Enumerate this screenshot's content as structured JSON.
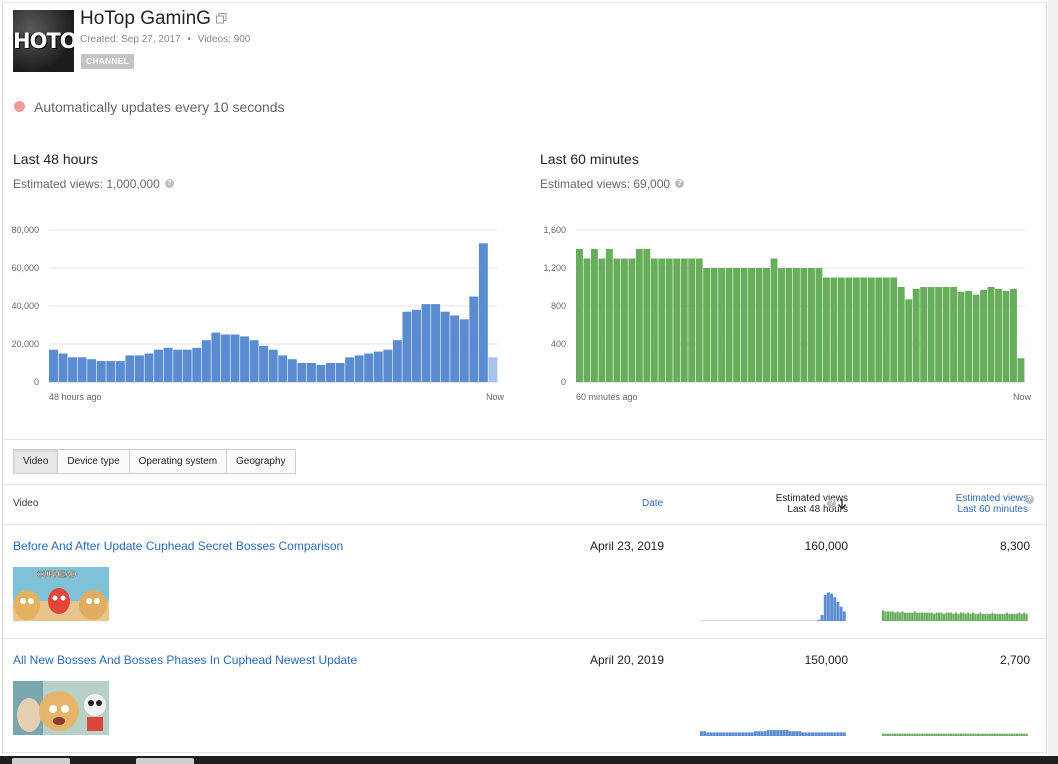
{
  "channel": {
    "name": "HoTop GaminG",
    "avatar_text": "HOTOP",
    "created": "Created: Sep 27, 2017",
    "separator": "•",
    "videos": "Videos: 900",
    "badge": "CHANNEL"
  },
  "auto_update": "Automatically updates every 10 seconds",
  "chart_data": [
    {
      "type": "bar",
      "title": "Last 48 hours",
      "subtitle": "Estimated views: 1,000,000",
      "x_start_label": "48 hours ago",
      "x_end_label": "Now",
      "ylim": [
        0,
        80000
      ],
      "yticks": [
        "0",
        "20,000",
        "40,000",
        "60,000",
        "80,000"
      ],
      "ytick_values": [
        0,
        20000,
        40000,
        60000,
        80000
      ],
      "grid": true,
      "color": "#5b8cd1",
      "partial_color": "#a9c3ea",
      "values": [
        17000,
        15000,
        13000,
        13000,
        12000,
        11000,
        11000,
        11000,
        14000,
        14000,
        15000,
        17000,
        18000,
        17000,
        17000,
        18000,
        22000,
        26000,
        25000,
        25000,
        24000,
        22000,
        19000,
        17000,
        14000,
        12000,
        10000,
        10000,
        9000,
        10000,
        10000,
        13000,
        14000,
        15000,
        16000,
        17000,
        22000,
        37000,
        38000,
        41000,
        41000,
        37000,
        35000,
        33000,
        45000,
        73000,
        13000
      ]
    },
    {
      "type": "bar",
      "title": "Last 60 minutes",
      "subtitle": "Estimated views: 69,000",
      "x_start_label": "60 minutes ago",
      "x_end_label": "Now",
      "ylim": [
        0,
        1600
      ],
      "yticks": [
        "0",
        "400",
        "800",
        "1,200",
        "1,600"
      ],
      "ytick_values": [
        0,
        400,
        800,
        1200,
        1600
      ],
      "grid": true,
      "color": "#67ad5b",
      "values": [
        1400,
        1300,
        1400,
        1300,
        1400,
        1300,
        1300,
        1300,
        1400,
        1400,
        1300,
        1300,
        1300,
        1300,
        1300,
        1300,
        1300,
        1200,
        1200,
        1200,
        1200,
        1200,
        1200,
        1200,
        1200,
        1200,
        1300,
        1200,
        1200,
        1200,
        1200,
        1200,
        1200,
        1100,
        1100,
        1100,
        1100,
        1100,
        1100,
        1100,
        1100,
        1100,
        1100,
        1000,
        870,
        980,
        1000,
        1000,
        1000,
        1000,
        1000,
        950,
        960,
        920,
        970,
        1000,
        980,
        960,
        980,
        250
      ]
    }
  ],
  "tabs": [
    {
      "label": "Video",
      "active": true
    },
    {
      "label": "Device type",
      "active": false
    },
    {
      "label": "Operating system",
      "active": false
    },
    {
      "label": "Geography",
      "active": false
    }
  ],
  "table": {
    "col_video": "Video",
    "col_date": "Date",
    "col_est48_line1": "Estimated views",
    "col_est48_line2": "Last 48 hours",
    "col_est60_line1": "Estimated views",
    "col_est60_line2": "Last 60 minutes",
    "rows": [
      {
        "title": "Before And After Update Cuphead Secret Bosses Comparison",
        "date": "April 23, 2019",
        "views_48h": "160,000",
        "views_60m": "8,300",
        "spark48": [
          0,
          0,
          0,
          0,
          0,
          0,
          0,
          0,
          0,
          0,
          0,
          0,
          0,
          0,
          0,
          0,
          0,
          0,
          0,
          0,
          0,
          0,
          0,
          0,
          0,
          0,
          0,
          0,
          0,
          0,
          0,
          0,
          0,
          0,
          0,
          0,
          0,
          1,
          5,
          22,
          24,
          23,
          20,
          16,
          12,
          8
        ],
        "spark60": [
          9,
          8,
          8,
          8,
          8,
          7,
          8,
          7,
          8,
          7,
          7,
          7,
          7,
          8,
          7,
          7,
          7,
          7,
          7,
          7,
          7,
          6,
          7,
          7,
          7,
          6,
          7,
          7,
          7,
          6,
          7,
          6,
          7,
          7,
          6,
          7,
          6,
          7,
          6,
          6,
          7,
          6,
          6,
          6,
          6,
          7,
          6,
          6,
          6,
          6,
          6,
          7,
          6,
          6,
          6,
          6,
          7,
          6,
          7,
          6
        ]
      },
      {
        "title": "All New Bosses And Bosses Phases In Cuphead Newest Update",
        "date": "April 20, 2019",
        "views_48h": "150,000",
        "views_60m": "2,700",
        "spark48": [
          4,
          4,
          3,
          3,
          3,
          3,
          3,
          3,
          3,
          3,
          3,
          3,
          3,
          3,
          3,
          3,
          3,
          4,
          4,
          4,
          4,
          5,
          5,
          5,
          5,
          5,
          5,
          5,
          4,
          4,
          4,
          4,
          3,
          3,
          3,
          3,
          3,
          3,
          3,
          3,
          3,
          3,
          3,
          3,
          3,
          3
        ],
        "spark60": [
          2,
          2,
          2,
          2,
          2,
          2,
          2,
          2,
          2,
          2,
          2,
          2,
          2,
          2,
          2,
          2,
          2,
          2,
          2,
          2,
          2,
          2,
          2,
          2,
          2,
          2,
          2,
          2,
          2,
          2,
          2,
          2,
          2,
          2,
          2,
          2,
          2,
          2,
          2,
          2,
          2,
          2,
          2,
          2,
          2,
          2,
          2,
          2,
          2,
          2,
          2,
          2,
          2,
          2,
          2,
          2,
          2,
          2,
          2,
          2
        ]
      }
    ]
  },
  "icons": {
    "external": "external-link-icon",
    "help": "help-icon",
    "sort": "sort-down-arrow-icon"
  }
}
